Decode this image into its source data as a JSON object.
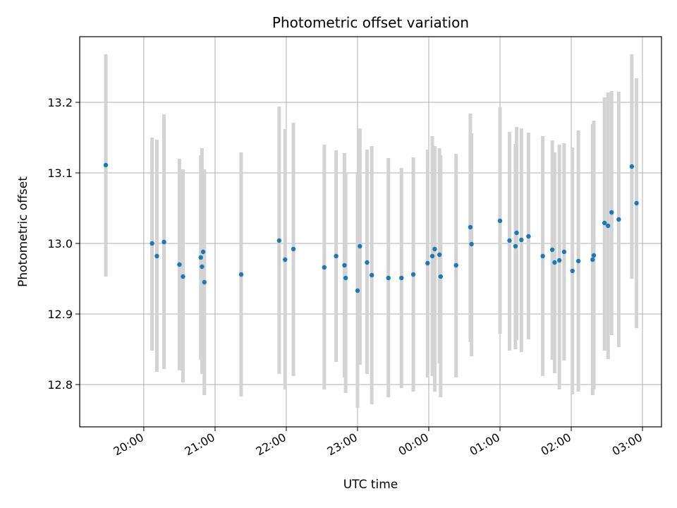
{
  "chart_data": {
    "type": "scatter",
    "title": "Photometric offset variation",
    "xlabel": "UTC time",
    "ylabel": "Photometric offset",
    "grid": true,
    "colors": {
      "points": "#1f77b4",
      "errorbars": "#d3d3d3",
      "grid": "#b0b0b0",
      "axes": "#000000"
    },
    "xlim": [
      "19:06",
      "03:16"
    ],
    "ylim": [
      12.74,
      13.293
    ],
    "x_ticks": [
      "20:00",
      "21:00",
      "22:00",
      "23:00",
      "00:00",
      "01:00",
      "02:00",
      "03:00"
    ],
    "y_ticks": [
      "12.8",
      "12.9",
      "13.0",
      "13.1",
      "13.2"
    ],
    "series": [
      {
        "x": [
          "19:28",
          "20:07",
          "20:11",
          "20:17",
          "20:30",
          "20:33",
          "20:48",
          "20:49",
          "20:50",
          "20:51",
          "21:22",
          "21:54",
          "21:59",
          "22:06",
          "22:32",
          "22:42",
          "22:49",
          "22:50",
          "23:00",
          "23:02",
          "23:08",
          "23:12",
          "23:26",
          "23:37",
          "23:47",
          "23:59",
          "00:03",
          "00:05",
          "00:09",
          "00:10",
          "00:23",
          "00:35",
          "00:36",
          "01:00",
          "01:08",
          "01:13",
          "01:14",
          "01:18",
          "01:24",
          "01:36",
          "01:44",
          "01:46",
          "01:50",
          "01:54",
          "02:01",
          "02:06",
          "02:18",
          "02:19",
          "02:28",
          "02:31",
          "02:34",
          "02:40",
          "02:51",
          "02:55"
        ],
        "y": [
          13.111,
          13.0,
          12.982,
          13.002,
          12.97,
          12.953,
          12.98,
          12.967,
          12.988,
          12.945,
          12.956,
          13.004,
          12.977,
          12.992,
          12.966,
          12.982,
          12.969,
          12.951,
          12.933,
          12.996,
          12.973,
          12.955,
          12.951,
          12.951,
          12.956,
          12.972,
          12.982,
          12.992,
          12.984,
          12.953,
          12.969,
          13.023,
          12.999,
          13.032,
          13.004,
          12.996,
          13.015,
          13.005,
          13.01,
          12.982,
          12.991,
          12.973,
          12.976,
          12.988,
          12.961,
          12.975,
          12.977,
          12.983,
          13.029,
          13.025,
          13.044,
          13.034,
          13.109,
          13.057
        ],
        "err_low": [
          12.953,
          12.848,
          12.818,
          12.822,
          12.82,
          12.803,
          12.835,
          12.815,
          12.815,
          12.785,
          12.783,
          12.815,
          12.793,
          12.812,
          12.793,
          12.832,
          12.81,
          12.788,
          12.767,
          12.828,
          12.815,
          12.772,
          12.782,
          12.795,
          12.79,
          12.81,
          12.812,
          12.79,
          12.83,
          12.782,
          12.81,
          12.86,
          12.84,
          12.872,
          12.848,
          12.85,
          12.863,
          12.846,
          12.864,
          12.812,
          12.835,
          12.816,
          12.793,
          12.834,
          12.786,
          12.79,
          12.785,
          12.793,
          12.848,
          12.836,
          12.87,
          12.853,
          12.95,
          12.88
        ],
        "err_high": [
          13.268,
          13.15,
          13.147,
          13.183,
          13.12,
          13.105,
          13.125,
          13.135,
          13.1,
          13.105,
          13.129,
          13.194,
          13.162,
          13.171,
          13.14,
          13.132,
          13.128,
          13.1,
          13.099,
          13.163,
          13.133,
          13.138,
          13.121,
          13.107,
          13.122,
          13.133,
          13.152,
          13.138,
          13.135,
          13.125,
          13.127,
          13.184,
          13.156,
          13.193,
          13.158,
          13.141,
          13.165,
          13.163,
          13.157,
          13.152,
          13.146,
          13.129,
          13.14,
          13.142,
          13.136,
          13.16,
          13.169,
          13.174,
          13.207,
          13.214,
          13.216,
          13.215,
          13.268,
          13.234
        ]
      }
    ]
  }
}
